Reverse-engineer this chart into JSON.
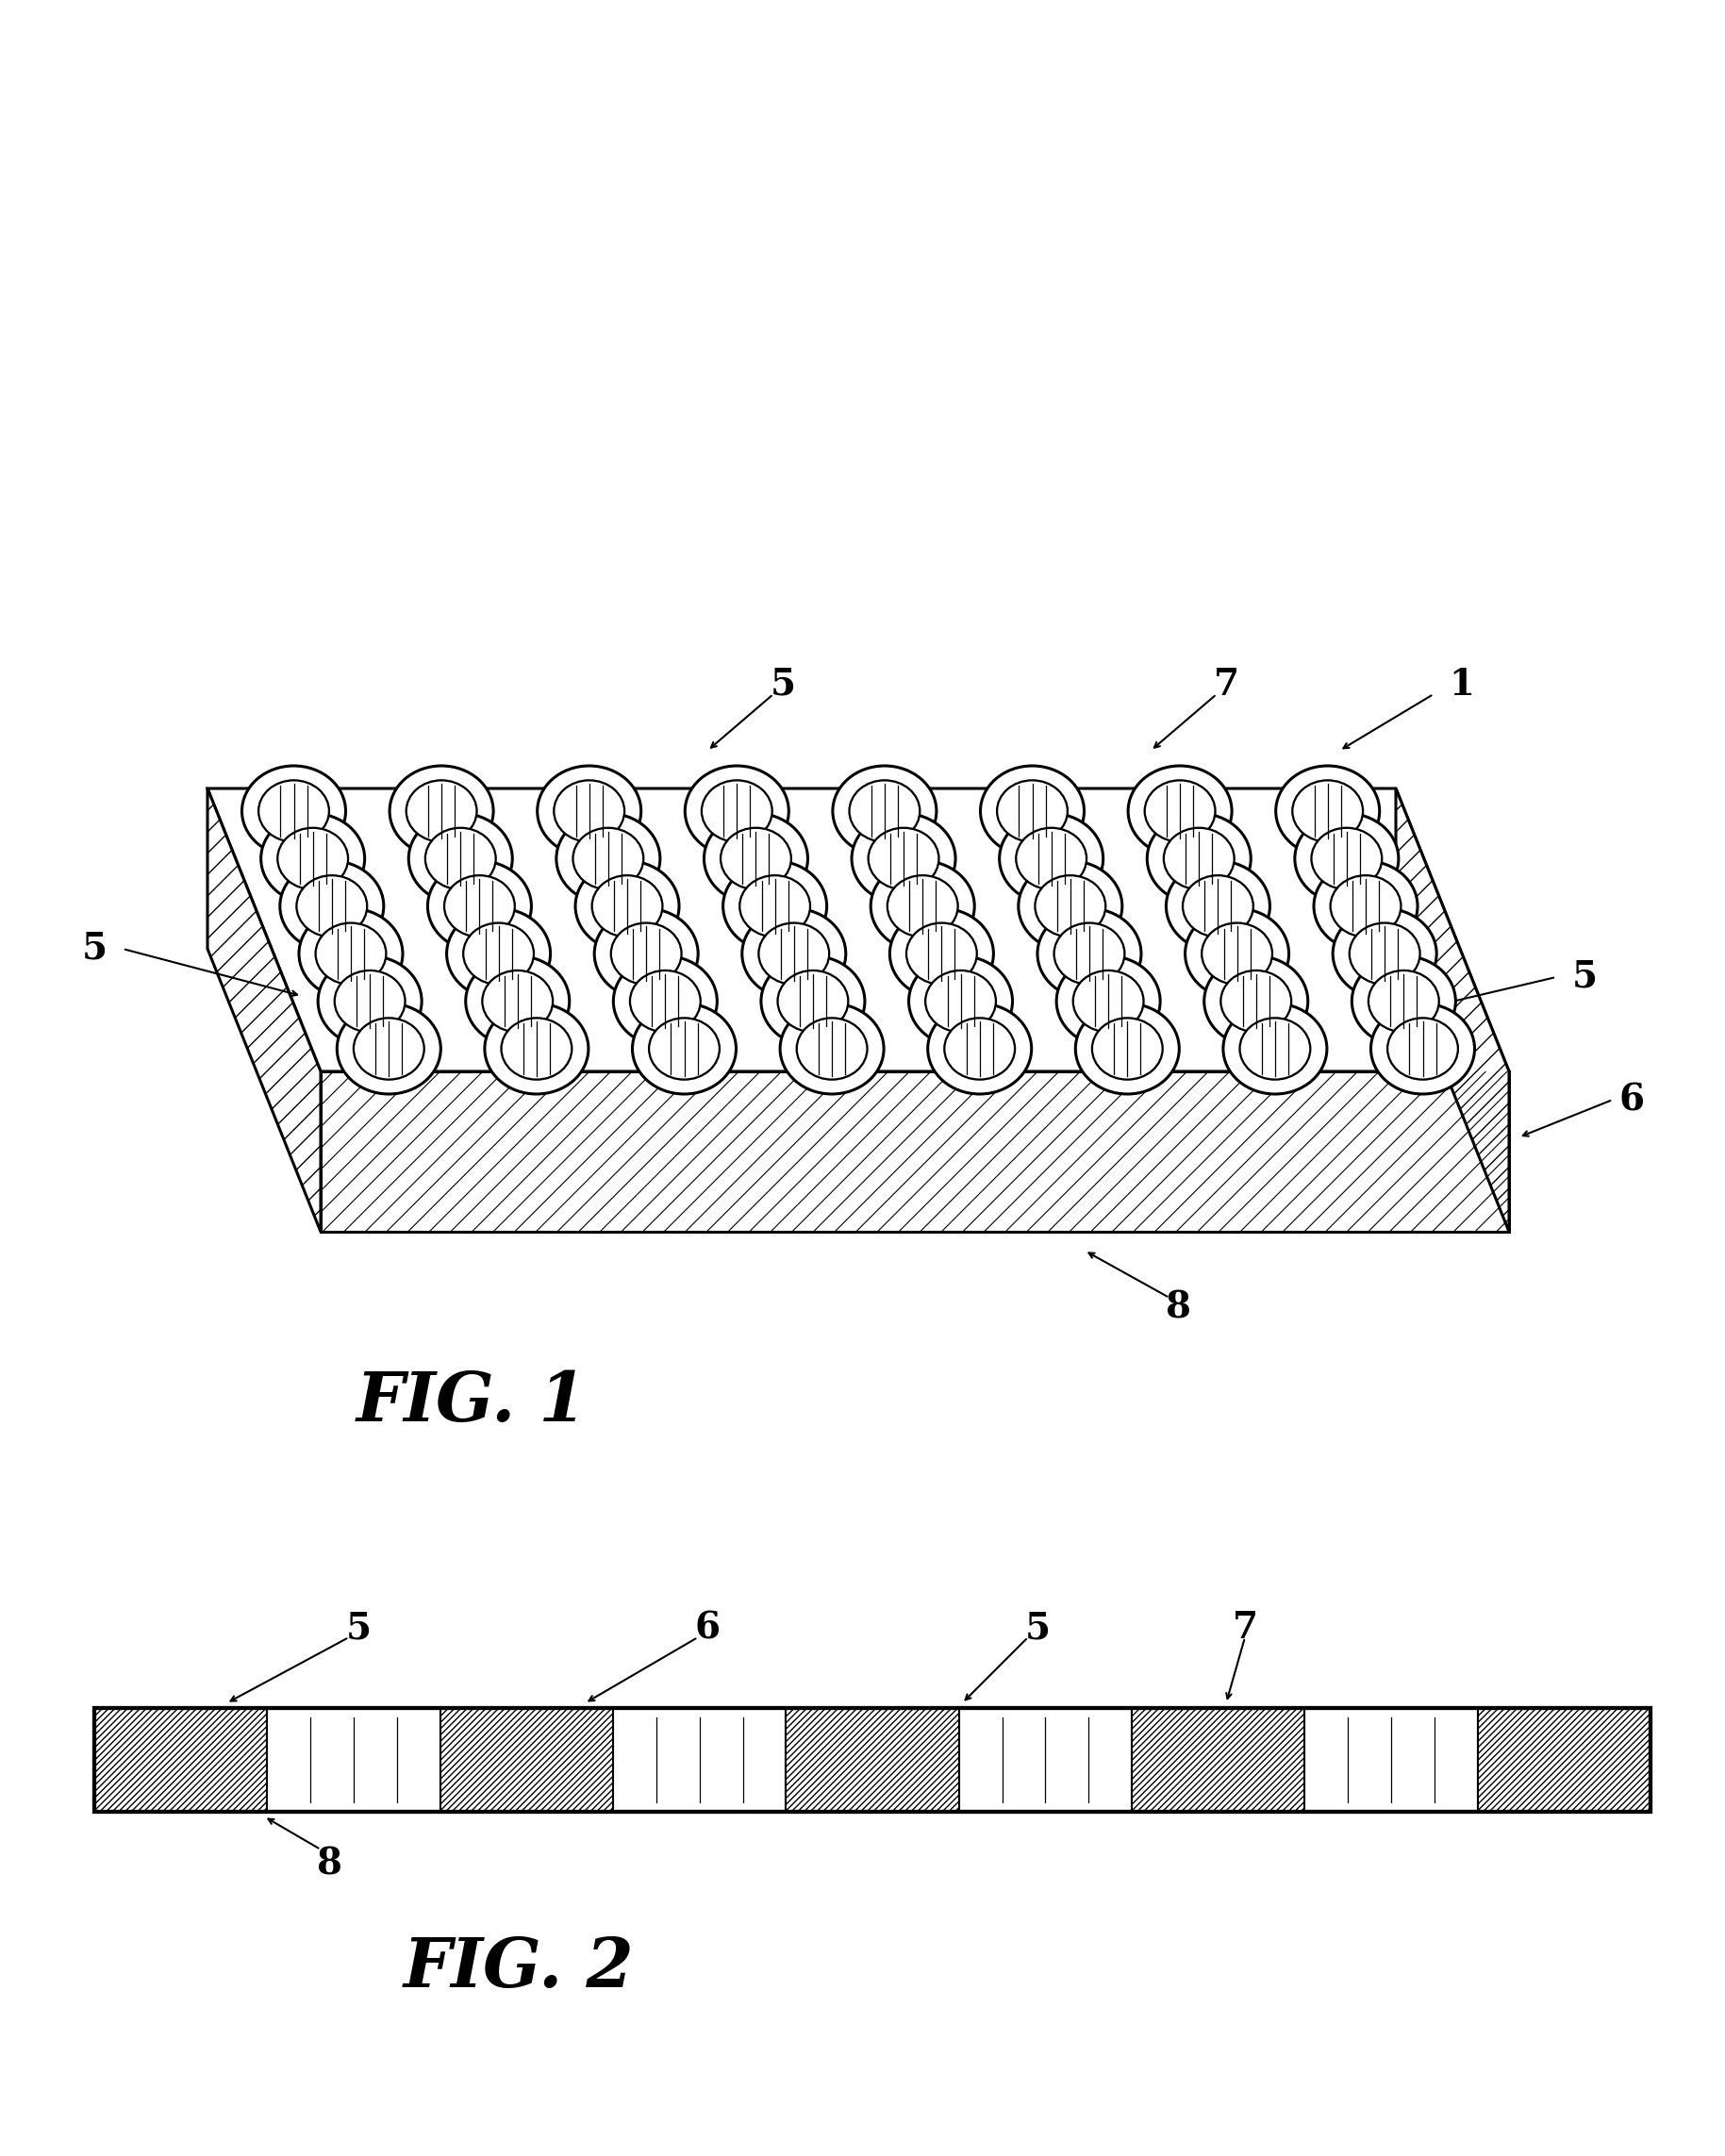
{
  "fig1_label": "FIG. 1",
  "fig2_label": "FIG. 2",
  "bg_color": "#ffffff",
  "line_color": "#000000",
  "n_rows": 6,
  "n_cols": 8,
  "label_fontsize": 28,
  "fig_label_fontsize": 52
}
